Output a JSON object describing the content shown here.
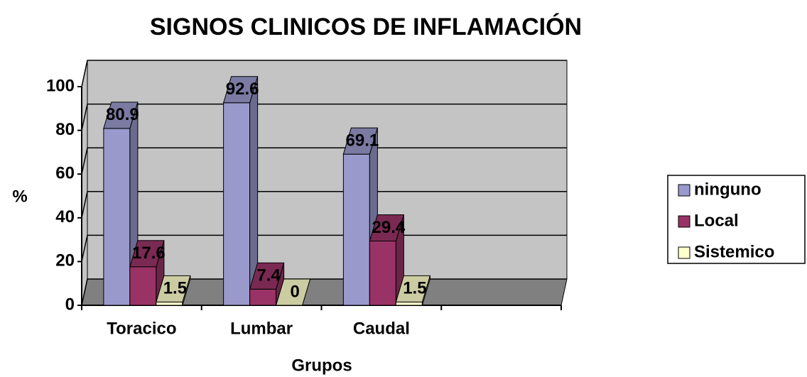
{
  "chart_data": {
    "type": "bar3d",
    "title": "SIGNOS CLINICOS DE INFLAMACIÓN",
    "xlabel": "Grupos",
    "ylabel": "%",
    "categories": [
      "Toracico",
      "Lumbar",
      "Caudal",
      null
    ],
    "series": [
      {
        "name": "ninguno",
        "color": "#9999cc",
        "values": [
          80.9,
          92.6,
          69.1,
          null
        ]
      },
      {
        "name": "Local",
        "color": "#993366",
        "values": [
          17.6,
          7.4,
          29.4,
          null
        ]
      },
      {
        "name": "Sistemico",
        "color": "#ffffcc",
        "values": [
          1.5,
          0,
          1.5,
          null
        ]
      }
    ],
    "ylim": [
      0,
      100
    ],
    "yticks": [
      0,
      20,
      40,
      60,
      80,
      100
    ],
    "grid": true,
    "legend": "right"
  }
}
